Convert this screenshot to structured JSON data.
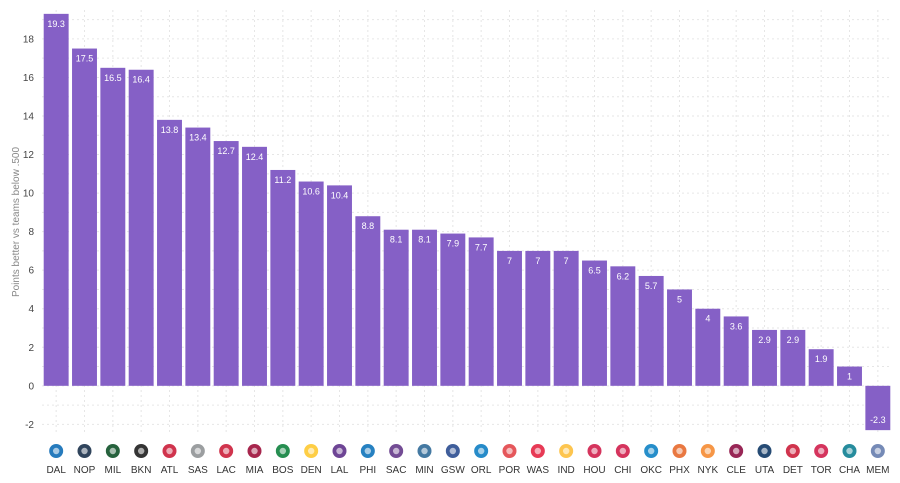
{
  "chart_data": {
    "type": "bar",
    "ylabel": "Points better vs teams below .500",
    "ylim": [
      -2.5,
      19.5
    ],
    "yticks": [
      -2,
      0,
      2,
      4,
      6,
      8,
      10,
      12,
      14,
      16,
      18
    ],
    "bar_color": "#8560c6",
    "grid": true,
    "categories": [
      "DAL",
      "NOP",
      "MIL",
      "BKN",
      "ATL",
      "SAS",
      "LAC",
      "MIA",
      "BOS",
      "DEN",
      "LAL",
      "PHI",
      "SAC",
      "MIN",
      "GSW",
      "ORL",
      "POR",
      "WAS",
      "IND",
      "HOU",
      "CHI",
      "OKC",
      "PHX",
      "NYK",
      "CLE",
      "UTA",
      "DET",
      "TOR",
      "CHA",
      "MEM"
    ],
    "values": [
      19.3,
      17.5,
      16.5,
      16.4,
      13.8,
      13.4,
      12.7,
      12.4,
      11.2,
      10.6,
      10.4,
      8.8,
      8.1,
      8.1,
      7.9,
      7.7,
      7,
      7,
      7,
      6.5,
      6.2,
      5.7,
      5,
      4,
      3.6,
      2.9,
      2.9,
      1.9,
      1,
      -2.3
    ],
    "data_labels": [
      "19.3",
      "17.5",
      "16.5",
      "16.4",
      "13.8",
      "13.4",
      "12.7",
      "12.4",
      "11.2",
      "10.6",
      "10.4",
      "8.8",
      "8.1",
      "8.1",
      "7.9",
      "7.7",
      "7",
      "7",
      "7",
      "6.5",
      "6.2",
      "5.7",
      "5",
      "4",
      "3.6",
      "2.9",
      "2.9",
      "1.9",
      "1",
      "-2.3"
    ],
    "logo_colors": [
      "#0064b1",
      "#0c2340",
      "#00471b",
      "#111111",
      "#c8102e",
      "#8a8d8f",
      "#c8102e",
      "#98002e",
      "#007a33",
      "#fec524",
      "#552583",
      "#006bb6",
      "#5a2d81",
      "#236192",
      "#1d428a",
      "#0077c0",
      "#e03a3e",
      "#e31837",
      "#fdbb30",
      "#ce1141",
      "#ce1141",
      "#007ac1",
      "#e56020",
      "#f58426",
      "#860038",
      "#002b5c",
      "#c8102e",
      "#ce1141",
      "#00788c",
      "#5d76a9"
    ]
  }
}
